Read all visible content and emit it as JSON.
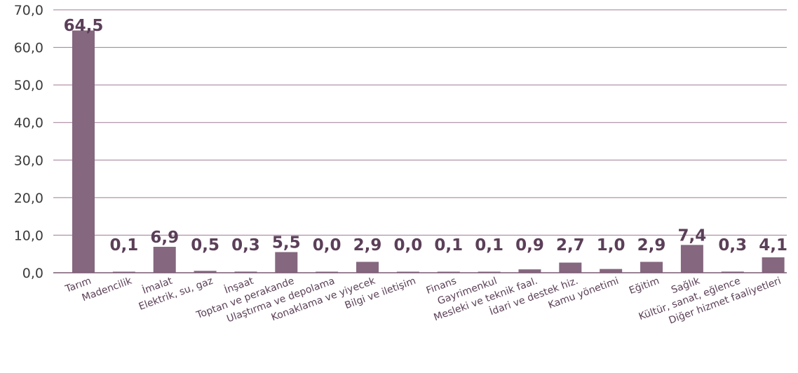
{
  "chart_data": {
    "type": "bar",
    "title": "",
    "xlabel": "",
    "ylabel": "",
    "ylim": [
      0,
      70
    ],
    "yticks": [
      0,
      10,
      20,
      30,
      40,
      50,
      60,
      70
    ],
    "ytick_labels": [
      "0,0",
      "10,0",
      "20,0",
      "30,0",
      "40,0",
      "50,0",
      "60,0",
      "70,0"
    ],
    "grid": true,
    "bar_color": "#85677f",
    "categories": [
      "Tarım",
      "Madencilik",
      "İmalat",
      "Elektrik, su, gaz",
      "İnşaat",
      "Toptan ve perakande",
      "Ulaştırma ve depolama",
      "Konaklama ve yiyecek",
      "Bilgi ve iletişim",
      "Finans",
      "Gayrimenkul",
      "Mesleki ve teknik faal.",
      "İdari ve destek hiz.",
      "Kamu yönetimi",
      "Eğitim",
      "Sağlık",
      "Kültür, sanat, eğlence",
      "Diğer hizmet faaliyetleri"
    ],
    "values": [
      64.5,
      0.1,
      6.9,
      0.5,
      0.3,
      5.5,
      0.0,
      2.9,
      0.0,
      0.1,
      0.1,
      0.9,
      2.7,
      1.0,
      2.9,
      7.4,
      0.3,
      4.1
    ],
    "value_labels": [
      "64,5",
      "0,1",
      "6,9",
      "0,5",
      "0,3",
      "5,5",
      "0,0",
      "2,9",
      "0,0",
      "0,1",
      "0,1",
      "0,9",
      "2,7",
      "1,0",
      "2,9",
      "7,4",
      "0,3",
      "4,1"
    ]
  }
}
